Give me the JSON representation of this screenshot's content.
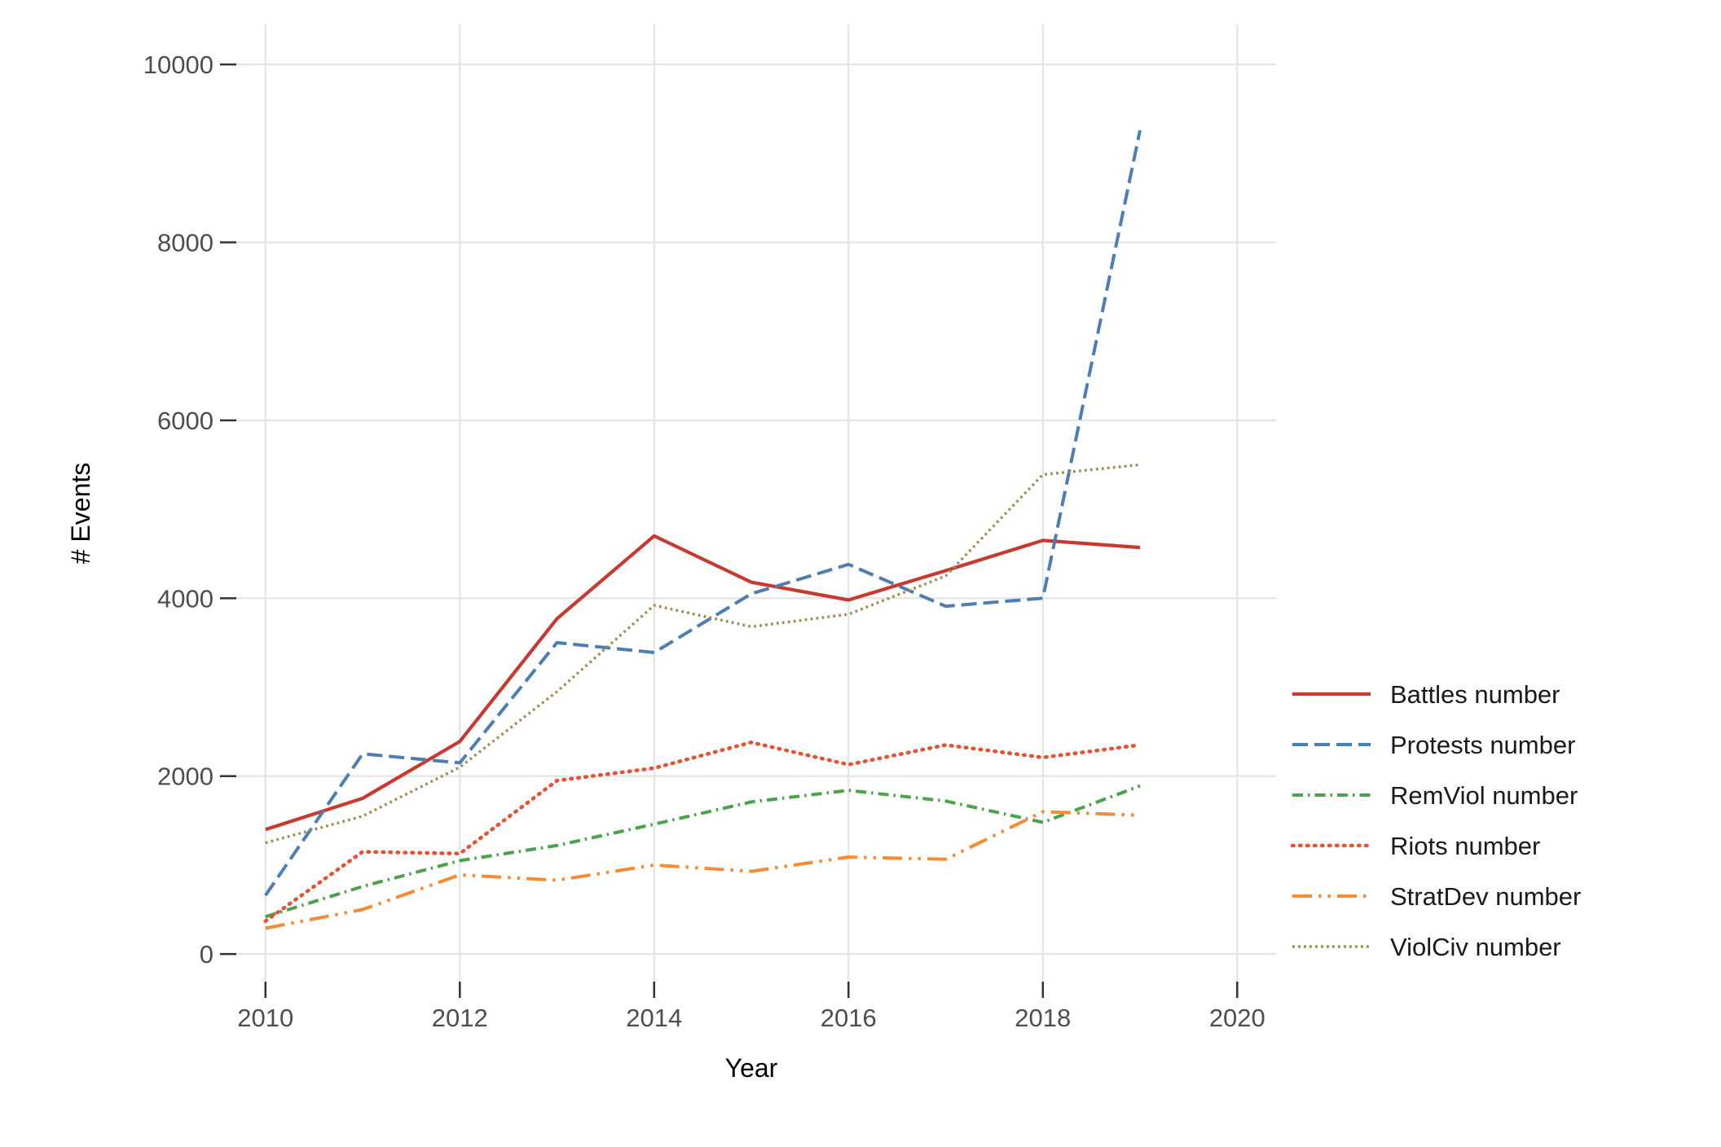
{
  "chart_data": {
    "type": "line",
    "title": "",
    "xlabel": "Year",
    "ylabel": "# Events",
    "x": [
      2010,
      2011,
      2012,
      2013,
      2014,
      2015,
      2016,
      2017,
      2018,
      2019
    ],
    "series": [
      {
        "id": "battles",
        "name": "Battles number",
        "color": "#c8392f",
        "linetype": "solid",
        "values": [
          1400,
          1750,
          2390,
          3770,
          4700,
          4180,
          3980,
          4310,
          4650,
          4570
        ]
      },
      {
        "id": "protests",
        "name": "Protests number",
        "color": "#4d7db5",
        "linetype": "longdash",
        "values": [
          660,
          2250,
          2150,
          3500,
          3390,
          4050,
          4380,
          3910,
          4000,
          9260
        ]
      },
      {
        "id": "remviol",
        "name": "RemViol number",
        "color": "#4aa24a",
        "linetype": "dotdash",
        "values": [
          420,
          760,
          1050,
          1220,
          1460,
          1710,
          1840,
          1720,
          1480,
          1890
        ]
      },
      {
        "id": "riots",
        "name": "Riots number",
        "color": "#e8502f",
        "linetype": "dotted",
        "values": [
          370,
          1150,
          1130,
          1950,
          2090,
          2380,
          2130,
          2350,
          2210,
          2350
        ]
      },
      {
        "id": "stratdev",
        "name": "StratDev number",
        "color": "#f68b33",
        "linetype": "twodash",
        "values": [
          290,
          500,
          890,
          830,
          1000,
          930,
          1090,
          1065,
          1600,
          1560
        ]
      },
      {
        "id": "violciv",
        "name": "ViolCiv number",
        "color": "#a08b52",
        "linetype": "dotted-fine",
        "values": [
          1250,
          1550,
          2100,
          2950,
          3920,
          3680,
          3820,
          4250,
          5390,
          5500
        ]
      }
    ],
    "x_ticks": [
      2010,
      2012,
      2014,
      2016,
      2018,
      2020
    ],
    "y_ticks": [
      0,
      2000,
      4000,
      6000,
      8000,
      10000
    ],
    "xlim": [
      2009.7,
      2020.4
    ],
    "ylim": [
      -310,
      10450
    ],
    "grid": true,
    "legend_position": "right",
    "colors": {
      "gridline": "#e4e4e4",
      "tick_mark": "#333333",
      "tick_label": "#4d4d4d",
      "axis_label": "#000000",
      "background": "#ffffff"
    }
  }
}
